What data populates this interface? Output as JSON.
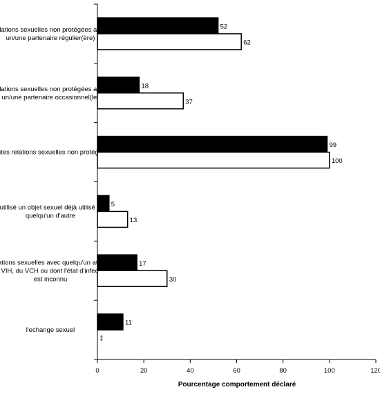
{
  "chart_data": {
    "type": "bar",
    "orientation": "horizontal",
    "title": "",
    "xlabel": "Pourcentage comportement déclaré",
    "ylabel": "",
    "xlim": [
      0,
      120
    ],
    "xticks": [
      "0",
      "20",
      "40",
      "60",
      "80",
      "100",
      "120"
    ],
    "grid": false,
    "legend": "none",
    "categories": [
      [
        "relations sexuelles non protégées avec",
        "un/une partenaire régulier(ère)"
      ],
      [
        "relations sexuelles non protégées avec",
        "un/une partenaire occasionnel(le)"
      ],
      [
        "toutes relations sexuelles non protégées"
      ],
      [
        "a utilisé un objet sexuel déjà utilisé par",
        "quelqu'un d'autre"
      ],
      [
        "relations sexuelles avec quelqu'un atteint",
        "du VIH, du VCH ou dont l'état d'infection",
        "est inconnu"
      ],
      [
        "l'echange sexuel"
      ]
    ],
    "series": [
      {
        "color": "#000000",
        "values": [
          52,
          18,
          99,
          5,
          17,
          11
        ],
        "value_labels": [
          "52",
          "18",
          "99",
          "5",
          "17",
          "11"
        ]
      },
      {
        "color": "#ffffff",
        "values": [
          62,
          37,
          100,
          13,
          30,
          null
        ],
        "value_labels": [
          "62",
          "37",
          "100",
          "13",
          "30",
          "‡"
        ]
      }
    ]
  }
}
